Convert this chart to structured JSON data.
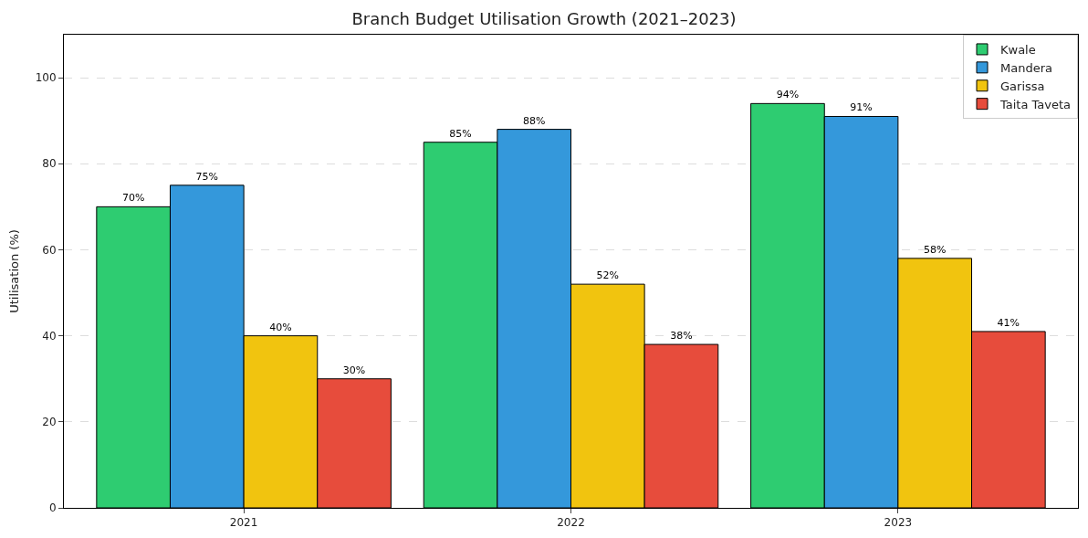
{
  "chart_data": {
    "type": "bar",
    "title": "Branch Budget Utilisation Growth (2021–2023)",
    "ylabel": "Utilisation (%)",
    "categories": [
      "2021",
      "2022",
      "2023"
    ],
    "series": [
      {
        "name": "Kwale",
        "color": "#2ecc71",
        "values": [
          70,
          85,
          94
        ],
        "value_labels": [
          "70%",
          "85%",
          "94%"
        ]
      },
      {
        "name": "Mandera",
        "color": "#3498db",
        "values": [
          75,
          88,
          91
        ],
        "value_labels": [
          "75%",
          "88%",
          "91%"
        ]
      },
      {
        "name": "Garissa",
        "color": "#f1c40f",
        "values": [
          40,
          52,
          58
        ],
        "value_labels": [
          "40%",
          "52%",
          "58%"
        ]
      },
      {
        "name": "Taita Taveta",
        "color": "#e74c3c",
        "values": [
          30,
          38,
          41
        ],
        "value_labels": [
          "30%",
          "38%",
          "41%"
        ]
      }
    ],
    "ylim": [
      0,
      110
    ],
    "yticks": [
      0,
      20,
      40,
      60,
      80,
      100
    ],
    "grid": "y",
    "legend": "top right"
  }
}
